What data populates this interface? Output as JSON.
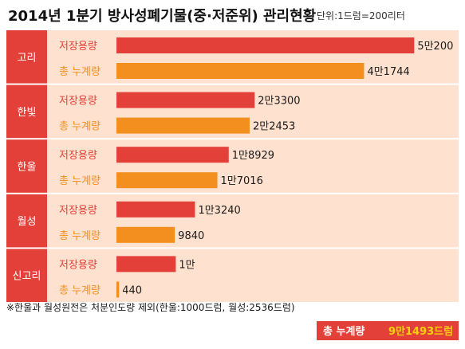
{
  "title": "2014년 1분기 방사성폐기물(중·저준위) 관리현황",
  "unit_note": "단위:1드럼=200리터",
  "footnote": "※한울과 월성원전은 처분인도량 제외(한울:1000드럼, 월성:2536드럼)",
  "total": {
    "label": "총 누계량",
    "value": "9만1493드럼"
  },
  "colors": {
    "plant_box": "#e4403a",
    "capacity": "#e4403a",
    "cumulative": "#f28f1e",
    "row_band": "#ffe1cf",
    "row_separator": "#ffffff",
    "total_box": "#e4403a",
    "total_text": "#f6d10b"
  },
  "chart_data": {
    "type": "bar",
    "orientation": "horizontal",
    "categories": [
      "고리",
      "한빛",
      "한울",
      "월성",
      "신고리"
    ],
    "series": [
      {
        "name": "저장용량",
        "values": [
          50200,
          23300,
          18929,
          13240,
          10000
        ],
        "labels": [
          "5만200",
          "2만3300",
          "1만8929",
          "1만3240",
          "1만"
        ]
      },
      {
        "name": "총 누계량",
        "values": [
          41744,
          22453,
          17016,
          9840,
          440
        ],
        "labels": [
          "4만1744",
          "2만2453",
          "1만7016",
          "9840",
          "440"
        ]
      }
    ],
    "xlim": [
      0,
      51500
    ],
    "grid": false,
    "legend": "none"
  }
}
